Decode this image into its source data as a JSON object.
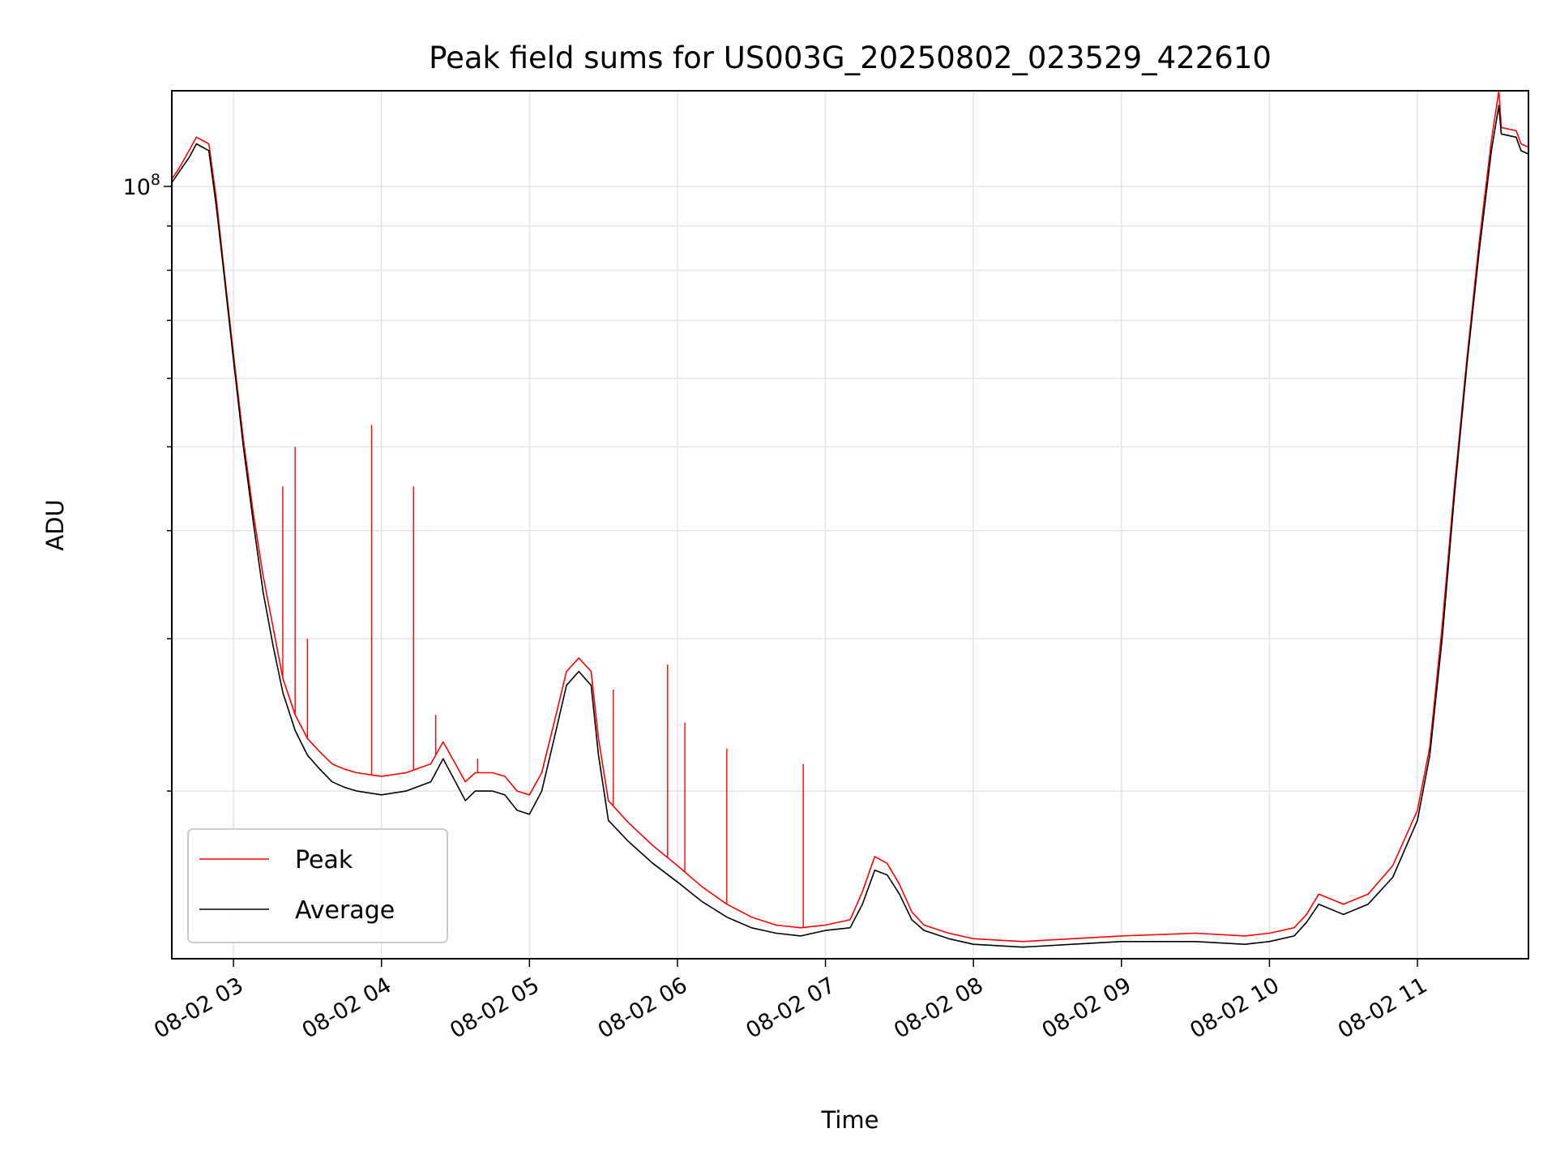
{
  "chart_data": {
    "type": "line",
    "title": "Peak field sums for US003G_20250802_023529_422610",
    "xlabel": "Time",
    "ylabel": "ADU",
    "y_scale": "log",
    "xlim": [
      "2025-08-02 02:35",
      "2025-08-02 11:45"
    ],
    "ylim": [
      12800000,
      129000000
    ],
    "x_ticks": [
      "08-02 03",
      "08-02 04",
      "08-02 05",
      "08-02 06",
      "08-02 07",
      "08-02 08",
      "08-02 09",
      "08-02 10",
      "08-02 11"
    ],
    "y_major_tick_label": "10",
    "y_major_tick_exp": "8",
    "y_major_tick_value": 100000000,
    "y_minor_ticks": [
      20000000,
      30000000,
      40000000,
      50000000,
      60000000,
      70000000,
      80000000,
      90000000
    ],
    "grid": true,
    "legend_position": "lower-left",
    "series": [
      {
        "name": "Average",
        "color": "#000000",
        "x": [
          "2025-08-02 02:35",
          "2025-08-02 02:38",
          "2025-08-02 02:42",
          "2025-08-02 02:45",
          "2025-08-02 02:50",
          "2025-08-02 02:53",
          "2025-08-02 02:56",
          "2025-08-02 03:00",
          "2025-08-02 03:04",
          "2025-08-02 03:08",
          "2025-08-02 03:12",
          "2025-08-02 03:16",
          "2025-08-02 03:20",
          "2025-08-02 03:25",
          "2025-08-02 03:30",
          "2025-08-02 03:35",
          "2025-08-02 03:40",
          "2025-08-02 03:45",
          "2025-08-02 03:50",
          "2025-08-02 04:00",
          "2025-08-02 04:10",
          "2025-08-02 04:20",
          "2025-08-02 04:25",
          "2025-08-02 04:30",
          "2025-08-02 04:34",
          "2025-08-02 04:38",
          "2025-08-02 04:45",
          "2025-08-02 04:50",
          "2025-08-02 04:55",
          "2025-08-02 05:00",
          "2025-08-02 05:05",
          "2025-08-02 05:10",
          "2025-08-02 05:15",
          "2025-08-02 05:20",
          "2025-08-02 05:25",
          "2025-08-02 05:28",
          "2025-08-02 05:32",
          "2025-08-02 05:40",
          "2025-08-02 05:50",
          "2025-08-02 06:00",
          "2025-08-02 06:10",
          "2025-08-02 06:20",
          "2025-08-02 06:30",
          "2025-08-02 06:40",
          "2025-08-02 06:50",
          "2025-08-02 07:00",
          "2025-08-02 07:10",
          "2025-08-02 07:15",
          "2025-08-02 07:20",
          "2025-08-02 07:25",
          "2025-08-02 07:30",
          "2025-08-02 07:35",
          "2025-08-02 07:40",
          "2025-08-02 07:50",
          "2025-08-02 08:00",
          "2025-08-02 08:20",
          "2025-08-02 08:40",
          "2025-08-02 09:00",
          "2025-08-02 09:30",
          "2025-08-02 09:50",
          "2025-08-02 10:00",
          "2025-08-02 10:10",
          "2025-08-02 10:15",
          "2025-08-02 10:20",
          "2025-08-02 10:30",
          "2025-08-02 10:40",
          "2025-08-02 10:50",
          "2025-08-02 11:00",
          "2025-08-02 11:05",
          "2025-08-02 11:10",
          "2025-08-02 11:15",
          "2025-08-02 11:20",
          "2025-08-02 11:25",
          "2025-08-02 11:30",
          "2025-08-02 11:33",
          "2025-08-02 11:34",
          "2025-08-02 11:40",
          "2025-08-02 11:42",
          "2025-08-02 11:45"
        ],
        "y": [
          101000000,
          104000000,
          108000000,
          112000000,
          110000000,
          95000000,
          80000000,
          63000000,
          50000000,
          41000000,
          34000000,
          29500000,
          26000000,
          23500000,
          22000000,
          21200000,
          20500000,
          20200000,
          20000000,
          19800000,
          20000000,
          20500000,
          21800000,
          20500000,
          19500000,
          20000000,
          20000000,
          19800000,
          19000000,
          18800000,
          20000000,
          23000000,
          26500000,
          27500000,
          26500000,
          22000000,
          18500000,
          17500000,
          16500000,
          15700000,
          14900000,
          14300000,
          13900000,
          13700000,
          13600000,
          13800000,
          13900000,
          14800000,
          16200000,
          16000000,
          15200000,
          14200000,
          13800000,
          13500000,
          13300000,
          13200000,
          13300000,
          13400000,
          13400000,
          13300000,
          13400000,
          13600000,
          14100000,
          14800000,
          14400000,
          14800000,
          15900000,
          18500000,
          22000000,
          30000000,
          44000000,
          62000000,
          84000000,
          110000000,
          124000000,
          115000000,
          114000000,
          110000000,
          109000000
        ]
      },
      {
        "name": "Peak",
        "color": "#ff0000",
        "x": [
          "2025-08-02 02:35",
          "2025-08-02 02:38",
          "2025-08-02 02:42",
          "2025-08-02 02:45",
          "2025-08-02 02:50",
          "2025-08-02 02:53",
          "2025-08-02 02:56",
          "2025-08-02 03:00",
          "2025-08-02 03:04",
          "2025-08-02 03:08",
          "2025-08-02 03:12",
          "2025-08-02 03:16",
          "2025-08-02 03:20",
          "2025-08-02 03:25",
          "2025-08-02 03:30",
          "2025-08-02 03:35",
          "2025-08-02 03:40",
          "2025-08-02 03:45",
          "2025-08-02 03:50",
          "2025-08-02 04:00",
          "2025-08-02 04:10",
          "2025-08-02 04:20",
          "2025-08-02 04:25",
          "2025-08-02 04:30",
          "2025-08-02 04:34",
          "2025-08-02 04:38",
          "2025-08-02 04:45",
          "2025-08-02 04:50",
          "2025-08-02 04:55",
          "2025-08-02 05:00",
          "2025-08-02 05:05",
          "2025-08-02 05:10",
          "2025-08-02 05:15",
          "2025-08-02 05:20",
          "2025-08-02 05:25",
          "2025-08-02 05:28",
          "2025-08-02 05:32",
          "2025-08-02 05:40",
          "2025-08-02 05:50",
          "2025-08-02 06:00",
          "2025-08-02 06:10",
          "2025-08-02 06:20",
          "2025-08-02 06:30",
          "2025-08-02 06:40",
          "2025-08-02 06:50",
          "2025-08-02 07:00",
          "2025-08-02 07:10",
          "2025-08-02 07:15",
          "2025-08-02 07:20",
          "2025-08-02 07:25",
          "2025-08-02 07:30",
          "2025-08-02 07:35",
          "2025-08-02 07:40",
          "2025-08-02 07:50",
          "2025-08-02 08:00",
          "2025-08-02 08:20",
          "2025-08-02 08:40",
          "2025-08-02 09:00",
          "2025-08-02 09:30",
          "2025-08-02 09:50",
          "2025-08-02 10:00",
          "2025-08-02 10:10",
          "2025-08-02 10:15",
          "2025-08-02 10:20",
          "2025-08-02 10:30",
          "2025-08-02 10:40",
          "2025-08-02 10:50",
          "2025-08-02 11:00",
          "2025-08-02 11:05",
          "2025-08-02 11:10",
          "2025-08-02 11:15",
          "2025-08-02 11:20",
          "2025-08-02 11:25",
          "2025-08-02 11:30",
          "2025-08-02 11:33",
          "2025-08-02 11:34",
          "2025-08-02 11:40",
          "2025-08-02 11:42",
          "2025-08-02 11:45"
        ],
        "y": [
          102000000,
          105000000,
          110000000,
          114000000,
          112000000,
          97000000,
          81000000,
          64000000,
          51000000,
          42000000,
          35500000,
          31000000,
          27000000,
          24500000,
          23000000,
          22200000,
          21500000,
          21200000,
          21000000,
          20800000,
          21000000,
          21500000,
          22800000,
          21500000,
          20500000,
          21000000,
          21000000,
          20800000,
          20000000,
          19800000,
          21000000,
          24000000,
          27500000,
          28500000,
          27500000,
          23000000,
          19500000,
          18400000,
          17300000,
          16400000,
          15500000,
          14800000,
          14300000,
          14000000,
          13900000,
          14000000,
          14200000,
          15300000,
          16800000,
          16500000,
          15600000,
          14500000,
          14000000,
          13700000,
          13500000,
          13400000,
          13500000,
          13600000,
          13700000,
          13600000,
          13700000,
          13900000,
          14400000,
          15200000,
          14800000,
          15200000,
          16400000,
          19000000,
          22500000,
          31000000,
          45000000,
          63000000,
          86000000,
          113000000,
          129000000,
          117000000,
          116000000,
          112000000,
          111000000
        ]
      }
    ],
    "peak_spikes": [
      {
        "x": "2025-08-02 03:20",
        "y": 45000000
      },
      {
        "x": "2025-08-02 03:25",
        "y": 50000000
      },
      {
        "x": "2025-08-02 03:30",
        "y": 30000000
      },
      {
        "x": "2025-08-02 03:56",
        "y": 53000000
      },
      {
        "x": "2025-08-02 04:13",
        "y": 45000000
      },
      {
        "x": "2025-08-02 04:22",
        "y": 24500000
      },
      {
        "x": "2025-08-02 04:39",
        "y": 21800000
      },
      {
        "x": "2025-08-02 05:34",
        "y": 26200000
      },
      {
        "x": "2025-08-02 05:56",
        "y": 28000000
      },
      {
        "x": "2025-08-02 06:03",
        "y": 24000000
      },
      {
        "x": "2025-08-02 06:20",
        "y": 22400000
      },
      {
        "x": "2025-08-02 06:51",
        "y": 21500000
      }
    ]
  }
}
